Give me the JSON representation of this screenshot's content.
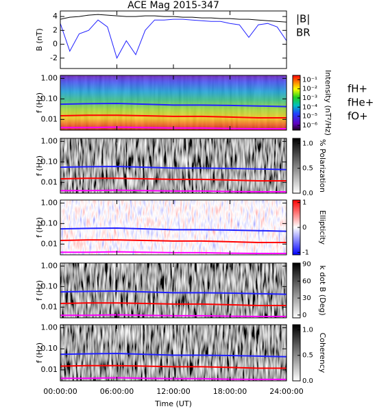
{
  "chart_data": [
    {
      "type": "line",
      "title": "ACE Mag 2015-347",
      "ylabel": "B (nT)",
      "x": [
        0,
        1,
        2,
        3,
        4,
        5,
        6,
        7,
        8,
        9,
        10,
        11,
        12,
        13,
        14,
        15,
        16,
        17,
        18,
        19,
        20,
        21,
        22,
        23,
        24
      ],
      "xlim": [
        0,
        24
      ],
      "xticks": [
        0,
        6,
        12,
        18,
        24
      ],
      "ylim": [
        -3.5,
        4.8
      ],
      "yticks": [
        -2,
        0,
        2,
        4
      ],
      "series": [
        {
          "name": "|B|",
          "color": "#000000",
          "values": [
            3.6,
            3.9,
            4.0,
            4.2,
            4.3,
            4.2,
            4.1,
            4.0,
            4.0,
            4.1,
            4.1,
            4.0,
            4.0,
            3.9,
            3.9,
            3.8,
            3.8,
            3.7,
            3.7,
            3.6,
            3.6,
            3.5,
            3.4,
            3.3,
            3.2
          ]
        },
        {
          "name": "BR",
          "color": "#2020ff",
          "values": [
            3.0,
            -1.0,
            1.5,
            2.0,
            3.5,
            2.5,
            -2.0,
            0.5,
            -1.5,
            2.0,
            3.5,
            3.5,
            3.6,
            3.6,
            3.5,
            3.4,
            3.3,
            3.3,
            3.0,
            2.8,
            1.0,
            2.8,
            3.0,
            2.5,
            0.5
          ]
        }
      ]
    },
    {
      "type": "spectrogram",
      "ylabel": "f (Hz)",
      "ylog": true,
      "colormap": "rainbow",
      "x": [
        0,
        3,
        6,
        9,
        12,
        15,
        18,
        21,
        24
      ],
      "xlim": [
        0,
        24
      ],
      "xticks": [
        0,
        6,
        12,
        18,
        24
      ],
      "ylim": [
        0.003,
        1.4
      ],
      "yticks": [
        {
          "value": 1,
          "label": "1.00"
        },
        {
          "value": 0.1,
          "label": "0.10"
        },
        {
          "value": 0.01,
          "label": "0.01"
        }
      ],
      "colorbar": {
        "label": "Intensity (nT²/Hz)",
        "log": true,
        "lim": [
          3e-07,
          0.3
        ],
        "ticks": [
          {
            "value": 0.1,
            "label": "10⁻¹"
          },
          {
            "value": 0.01,
            "label": "10⁻²"
          },
          {
            "value": 0.001,
            "label": "10⁻³"
          },
          {
            "value": 0.0001,
            "label": "10⁻⁴"
          },
          {
            "value": 1e-05,
            "label": "10⁻⁵"
          },
          {
            "value": 1e-06,
            "label": "10⁻⁶"
          }
        ]
      },
      "series": [
        {
          "name": "fH+",
          "color": "#2020ff",
          "values": [
            0.055,
            0.058,
            0.06,
            0.055,
            0.05,
            0.05,
            0.048,
            0.045,
            0.042
          ]
        },
        {
          "name": "fHe+",
          "color": "#ff0000",
          "values": [
            0.015,
            0.016,
            0.016,
            0.015,
            0.014,
            0.014,
            0.013,
            0.012,
            0.012
          ]
        },
        {
          "name": "fO+",
          "color": "#ff00ff",
          "values": [
            0.004,
            0.004,
            0.0042,
            0.004,
            0.0038,
            0.0038,
            0.0036,
            0.0035,
            0.0035
          ]
        }
      ]
    },
    {
      "type": "spectrogram",
      "ylabel": "f (Hz)",
      "ylog": true,
      "colormap": "gray",
      "x": [
        0,
        3,
        6,
        9,
        12,
        15,
        18,
        21,
        24
      ],
      "xlim": [
        0,
        24
      ],
      "xticks": [
        0,
        6,
        12,
        18,
        24
      ],
      "ylim": [
        0.003,
        1.4
      ],
      "yticks": [
        {
          "value": 1,
          "label": "1.00"
        },
        {
          "value": 0.1,
          "label": "0.10"
        },
        {
          "value": 0.01,
          "label": "0.01"
        }
      ],
      "colorbar": {
        "label": "% Polarization",
        "lim": [
          0,
          1.1
        ],
        "ticks": [
          {
            "value": 1,
            "label": "1.0"
          },
          {
            "value": 0.5,
            "label": "0.5"
          },
          {
            "value": 0,
            "label": "0.0"
          }
        ]
      },
      "series": [
        {
          "color": "#2020ff",
          "values": [
            0.055,
            0.058,
            0.06,
            0.055,
            0.05,
            0.05,
            0.048,
            0.045,
            0.042
          ]
        },
        {
          "color": "#ff0000",
          "values": [
            0.015,
            0.016,
            0.016,
            0.015,
            0.014,
            0.014,
            0.013,
            0.012,
            0.012
          ]
        },
        {
          "color": "#ff00ff",
          "values": [
            0.004,
            0.004,
            0.0042,
            0.004,
            0.0038,
            0.0038,
            0.0036,
            0.0035,
            0.0035
          ]
        }
      ]
    },
    {
      "type": "spectrogram",
      "ylabel": "f (Hz)",
      "ylog": true,
      "colormap": "bwr",
      "x": [
        0,
        3,
        6,
        9,
        12,
        15,
        18,
        21,
        24
      ],
      "xlim": [
        0,
        24
      ],
      "xticks": [
        0,
        6,
        12,
        18,
        24
      ],
      "ylim": [
        0.003,
        1.4
      ],
      "yticks": [
        {
          "value": 1,
          "label": "1.00"
        },
        {
          "value": 0.1,
          "label": "0.10"
        },
        {
          "value": 0.01,
          "label": "0.01"
        }
      ],
      "colorbar": {
        "label": "Ellipticity",
        "lim": [
          -1.1,
          1.1
        ],
        "ticks": [
          1,
          0,
          -1
        ]
      },
      "series": [
        {
          "color": "#2020ff",
          "values": [
            0.055,
            0.058,
            0.06,
            0.055,
            0.05,
            0.05,
            0.048,
            0.045,
            0.042
          ]
        },
        {
          "color": "#ff0000",
          "values": [
            0.015,
            0.016,
            0.016,
            0.015,
            0.014,
            0.014,
            0.013,
            0.012,
            0.012
          ]
        },
        {
          "color": "#ff00ff",
          "values": [
            0.004,
            0.004,
            0.0042,
            0.004,
            0.0038,
            0.0038,
            0.0036,
            0.0035,
            0.0035
          ]
        }
      ]
    },
    {
      "type": "spectrogram",
      "ylabel": "f (Hz)",
      "ylog": true,
      "colormap": "gray",
      "x": [
        0,
        3,
        6,
        9,
        12,
        15,
        18,
        21,
        24
      ],
      "xlim": [
        0,
        24
      ],
      "xticks": [
        0,
        6,
        12,
        18,
        24
      ],
      "ylim": [
        0.003,
        1.4
      ],
      "yticks": [
        {
          "value": 1,
          "label": "1.00"
        },
        {
          "value": 0.1,
          "label": "0.10"
        },
        {
          "value": 0.01,
          "label": "0.01"
        }
      ],
      "colorbar": {
        "label": "k dot B (Deg)",
        "lim": [
          -5,
          92
        ],
        "ticks": [
          90,
          60,
          30,
          0
        ]
      },
      "series": [
        {
          "color": "#2020ff",
          "values": [
            0.055,
            0.058,
            0.06,
            0.055,
            0.05,
            0.05,
            0.048,
            0.045,
            0.042
          ]
        },
        {
          "color": "#ff0000",
          "values": [
            0.015,
            0.016,
            0.016,
            0.015,
            0.014,
            0.014,
            0.013,
            0.012,
            0.012
          ]
        },
        {
          "color": "#ff00ff",
          "values": [
            0.004,
            0.004,
            0.0042,
            0.004,
            0.0038,
            0.0038,
            0.0036,
            0.0035,
            0.0035
          ]
        }
      ]
    },
    {
      "type": "spectrogram",
      "ylabel": "f (Hz)",
      "ylog": true,
      "colormap": "gray",
      "xlabel": "Time (UT)",
      "x": [
        0,
        3,
        6,
        9,
        12,
        15,
        18,
        21,
        24
      ],
      "xlim": [
        0,
        24
      ],
      "xticks": [
        {
          "value": 0,
          "label": "00:00:00"
        },
        {
          "value": 6,
          "label": "06:00:00"
        },
        {
          "value": 12,
          "label": "12:00:00"
        },
        {
          "value": 18,
          "label": "18:00:00"
        },
        {
          "value": 24,
          "label": "24:00:00"
        }
      ],
      "ylim": [
        0.003,
        1.4
      ],
      "yticks": [
        {
          "value": 1,
          "label": "1.00"
        },
        {
          "value": 0.1,
          "label": "0.10"
        },
        {
          "value": 0.01,
          "label": "0.01"
        }
      ],
      "colorbar": {
        "label": "Coherency",
        "lim": [
          0,
          1.1
        ],
        "ticks": [
          {
            "value": 1,
            "label": "1.0"
          },
          {
            "value": 0.5,
            "label": "0.5"
          },
          {
            "value": 0,
            "label": "0.0"
          }
        ]
      },
      "series": [
        {
          "color": "#2020ff",
          "values": [
            0.055,
            0.058,
            0.06,
            0.055,
            0.05,
            0.05,
            0.048,
            0.045,
            0.042
          ]
        },
        {
          "color": "#ff0000",
          "values": [
            0.015,
            0.016,
            0.016,
            0.015,
            0.014,
            0.014,
            0.013,
            0.012,
            0.012
          ]
        },
        {
          "color": "#ff00ff",
          "values": [
            0.004,
            0.004,
            0.0042,
            0.004,
            0.0038,
            0.0038,
            0.0036,
            0.0035,
            0.0035
          ]
        }
      ]
    }
  ]
}
